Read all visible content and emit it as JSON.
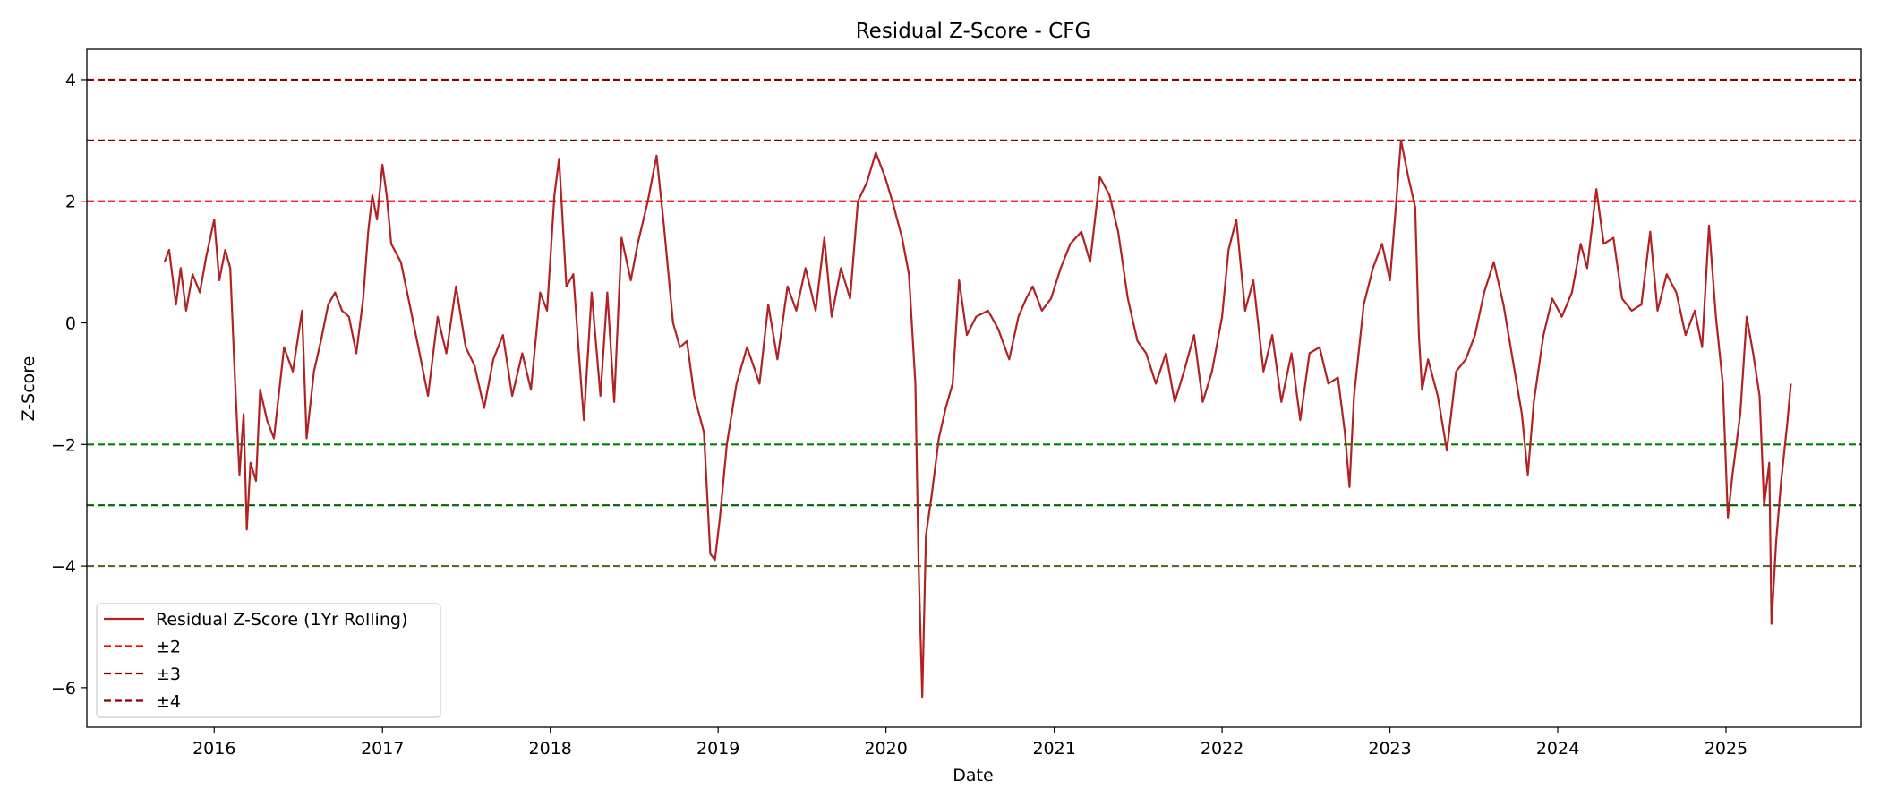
{
  "chart_data": {
    "type": "line",
    "title": "Residual Z-Score - CFG",
    "xlabel": "Date",
    "ylabel": "Z-Score",
    "xlim": [
      "2015-03-30",
      "2025-10-22"
    ],
    "ylim": [
      -6.65,
      4.5
    ],
    "x_ticks": [
      "2016-01-01",
      "2017-01-01",
      "2018-01-01",
      "2019-01-01",
      "2020-01-01",
      "2021-01-01",
      "2022-01-01",
      "2023-01-01",
      "2024-01-01",
      "2025-01-01"
    ],
    "x_tick_labels": [
      "2016",
      "2017",
      "2018",
      "2019",
      "2020",
      "2021",
      "2022",
      "2023",
      "2024",
      "2025"
    ],
    "y_ticks": [
      -6,
      -4,
      -2,
      0,
      2,
      4
    ],
    "y_tick_labels": [
      "−6",
      "−4",
      "−2",
      "0",
      "2",
      "4"
    ],
    "grid": false,
    "legend_position": "lower-left",
    "series": [
      {
        "name": "Residual Z-Score (1Yr Rolling)",
        "color": "#b22222",
        "points": [
          [
            "2015-09-15",
            1.0
          ],
          [
            "2015-09-25",
            1.2
          ],
          [
            "2015-10-10",
            0.3
          ],
          [
            "2015-10-20",
            0.9
          ],
          [
            "2015-11-01",
            0.2
          ],
          [
            "2015-11-15",
            0.8
          ],
          [
            "2015-12-01",
            0.5
          ],
          [
            "2015-12-15",
            1.1
          ],
          [
            "2016-01-01",
            1.7
          ],
          [
            "2016-01-12",
            0.7
          ],
          [
            "2016-01-25",
            1.2
          ],
          [
            "2016-02-05",
            0.9
          ],
          [
            "2016-02-15",
            -0.9
          ],
          [
            "2016-02-25",
            -2.5
          ],
          [
            "2016-03-05",
            -1.5
          ],
          [
            "2016-03-12",
            -3.4
          ],
          [
            "2016-03-20",
            -2.3
          ],
          [
            "2016-04-01",
            -2.6
          ],
          [
            "2016-04-10",
            -1.1
          ],
          [
            "2016-04-25",
            -1.6
          ],
          [
            "2016-05-10",
            -1.9
          ],
          [
            "2016-06-01",
            -0.4
          ],
          [
            "2016-06-20",
            -0.8
          ],
          [
            "2016-07-10",
            0.2
          ],
          [
            "2016-07-20",
            -1.9
          ],
          [
            "2016-08-05",
            -0.8
          ],
          [
            "2016-08-20",
            -0.3
          ],
          [
            "2016-09-05",
            0.3
          ],
          [
            "2016-09-20",
            0.5
          ],
          [
            "2016-10-05",
            0.2
          ],
          [
            "2016-10-20",
            0.1
          ],
          [
            "2016-11-05",
            -0.5
          ],
          [
            "2016-11-20",
            0.4
          ],
          [
            "2016-12-01",
            1.5
          ],
          [
            "2016-12-10",
            2.1
          ],
          [
            "2016-12-20",
            1.7
          ],
          [
            "2017-01-01",
            2.6
          ],
          [
            "2017-01-10",
            2.1
          ],
          [
            "2017-01-20",
            1.3
          ],
          [
            "2017-02-10",
            1.0
          ],
          [
            "2017-03-01",
            0.3
          ],
          [
            "2017-03-20",
            -0.4
          ],
          [
            "2017-04-10",
            -1.2
          ],
          [
            "2017-05-01",
            0.1
          ],
          [
            "2017-05-20",
            -0.5
          ],
          [
            "2017-06-10",
            0.6
          ],
          [
            "2017-07-01",
            -0.4
          ],
          [
            "2017-07-20",
            -0.7
          ],
          [
            "2017-08-10",
            -1.4
          ],
          [
            "2017-08-30",
            -0.6
          ],
          [
            "2017-09-20",
            -0.2
          ],
          [
            "2017-10-10",
            -1.2
          ],
          [
            "2017-11-01",
            -0.5
          ],
          [
            "2017-11-20",
            -1.1
          ],
          [
            "2017-12-10",
            0.5
          ],
          [
            "2017-12-25",
            0.2
          ],
          [
            "2018-01-10",
            2.1
          ],
          [
            "2018-01-20",
            2.7
          ],
          [
            "2018-02-05",
            0.6
          ],
          [
            "2018-02-20",
            0.8
          ],
          [
            "2018-03-05",
            -0.6
          ],
          [
            "2018-03-15",
            -1.6
          ],
          [
            "2018-04-01",
            0.5
          ],
          [
            "2018-04-20",
            -1.2
          ],
          [
            "2018-05-05",
            0.5
          ],
          [
            "2018-05-20",
            -1.3
          ],
          [
            "2018-06-05",
            1.4
          ],
          [
            "2018-06-25",
            0.7
          ],
          [
            "2018-07-10",
            1.3
          ],
          [
            "2018-08-01",
            2.0
          ],
          [
            "2018-08-20",
            2.75
          ],
          [
            "2018-09-05",
            1.6
          ],
          [
            "2018-09-25",
            0.0
          ],
          [
            "2018-10-10",
            -0.4
          ],
          [
            "2018-10-25",
            -0.3
          ],
          [
            "2018-11-10",
            -1.2
          ],
          [
            "2018-12-01",
            -1.8
          ],
          [
            "2018-12-15",
            -3.8
          ],
          [
            "2018-12-25",
            -3.9
          ],
          [
            "2019-01-05",
            -3.2
          ],
          [
            "2019-01-20",
            -2.0
          ],
          [
            "2019-02-10",
            -1.0
          ],
          [
            "2019-03-05",
            -0.4
          ],
          [
            "2019-04-01",
            -1.0
          ],
          [
            "2019-04-20",
            0.3
          ],
          [
            "2019-05-10",
            -0.6
          ],
          [
            "2019-06-01",
            0.6
          ],
          [
            "2019-06-20",
            0.2
          ],
          [
            "2019-07-10",
            0.9
          ],
          [
            "2019-08-01",
            0.2
          ],
          [
            "2019-08-20",
            1.4
          ],
          [
            "2019-09-05",
            0.1
          ],
          [
            "2019-09-25",
            0.9
          ],
          [
            "2019-10-15",
            0.4
          ],
          [
            "2019-11-01",
            2.0
          ],
          [
            "2019-11-20",
            2.3
          ],
          [
            "2019-12-10",
            2.8
          ],
          [
            "2019-12-30",
            2.4
          ],
          [
            "2020-01-15",
            2.0
          ],
          [
            "2020-02-05",
            1.4
          ],
          [
            "2020-02-20",
            0.8
          ],
          [
            "2020-03-05",
            -1.0
          ],
          [
            "2020-03-12",
            -4.0
          ],
          [
            "2020-03-20",
            -6.15
          ],
          [
            "2020-03-28",
            -3.5
          ],
          [
            "2020-04-10",
            -2.8
          ],
          [
            "2020-04-25",
            -1.9
          ],
          [
            "2020-05-10",
            -1.4
          ],
          [
            "2020-05-25",
            -1.0
          ],
          [
            "2020-06-08",
            0.7
          ],
          [
            "2020-06-25",
            -0.2
          ],
          [
            "2020-07-15",
            0.1
          ],
          [
            "2020-08-10",
            0.2
          ],
          [
            "2020-09-01",
            -0.1
          ],
          [
            "2020-09-25",
            -0.6
          ],
          [
            "2020-10-15",
            0.1
          ],
          [
            "2020-11-01",
            0.4
          ],
          [
            "2020-11-15",
            0.6
          ],
          [
            "2020-12-05",
            0.2
          ],
          [
            "2020-12-25",
            0.4
          ],
          [
            "2021-01-15",
            0.9
          ],
          [
            "2021-02-05",
            1.3
          ],
          [
            "2021-03-01",
            1.5
          ],
          [
            "2021-03-20",
            1.0
          ],
          [
            "2021-04-10",
            2.4
          ],
          [
            "2021-05-01",
            2.1
          ],
          [
            "2021-05-20",
            1.5
          ],
          [
            "2021-06-10",
            0.4
          ],
          [
            "2021-07-01",
            -0.3
          ],
          [
            "2021-07-20",
            -0.5
          ],
          [
            "2021-08-10",
            -1.0
          ],
          [
            "2021-09-01",
            -0.5
          ],
          [
            "2021-09-20",
            -1.3
          ],
          [
            "2021-10-10",
            -0.8
          ],
          [
            "2021-11-01",
            -0.2
          ],
          [
            "2021-11-20",
            -1.3
          ],
          [
            "2021-12-10",
            -0.8
          ],
          [
            "2022-01-01",
            0.1
          ],
          [
            "2022-01-15",
            1.2
          ],
          [
            "2022-02-01",
            1.7
          ],
          [
            "2022-02-20",
            0.2
          ],
          [
            "2022-03-10",
            0.7
          ],
          [
            "2022-04-01",
            -0.8
          ],
          [
            "2022-04-20",
            -0.2
          ],
          [
            "2022-05-10",
            -1.3
          ],
          [
            "2022-06-01",
            -0.5
          ],
          [
            "2022-06-20",
            -1.6
          ],
          [
            "2022-07-10",
            -0.5
          ],
          [
            "2022-08-01",
            -0.4
          ],
          [
            "2022-08-20",
            -1.0
          ],
          [
            "2022-09-10",
            -0.9
          ],
          [
            "2022-09-25",
            -1.8
          ],
          [
            "2022-10-05",
            -2.7
          ],
          [
            "2022-10-15",
            -1.2
          ],
          [
            "2022-11-05",
            0.3
          ],
          [
            "2022-11-25",
            0.9
          ],
          [
            "2022-12-15",
            1.3
          ],
          [
            "2023-01-01",
            0.7
          ],
          [
            "2023-01-15",
            2.0
          ],
          [
            "2023-01-25",
            3.0
          ],
          [
            "2023-02-10",
            2.4
          ],
          [
            "2023-02-25",
            1.9
          ],
          [
            "2023-03-05",
            -0.2
          ],
          [
            "2023-03-12",
            -1.1
          ],
          [
            "2023-03-25",
            -0.6
          ],
          [
            "2023-04-15",
            -1.2
          ],
          [
            "2023-05-05",
            -2.1
          ],
          [
            "2023-05-25",
            -0.8
          ],
          [
            "2023-06-15",
            -0.6
          ],
          [
            "2023-07-05",
            -0.2
          ],
          [
            "2023-07-25",
            0.5
          ],
          [
            "2023-08-15",
            1.0
          ],
          [
            "2023-09-05",
            0.3
          ],
          [
            "2023-09-25",
            -0.6
          ],
          [
            "2023-10-15",
            -1.5
          ],
          [
            "2023-10-28",
            -2.5
          ],
          [
            "2023-11-10",
            -1.3
          ],
          [
            "2023-12-01",
            -0.2
          ],
          [
            "2023-12-20",
            0.4
          ],
          [
            "2024-01-10",
            0.1
          ],
          [
            "2024-02-01",
            0.5
          ],
          [
            "2024-02-20",
            1.3
          ],
          [
            "2024-03-05",
            0.9
          ],
          [
            "2024-03-25",
            2.2
          ],
          [
            "2024-04-10",
            1.3
          ],
          [
            "2024-05-01",
            1.4
          ],
          [
            "2024-05-20",
            0.4
          ],
          [
            "2024-06-10",
            0.2
          ],
          [
            "2024-07-01",
            0.3
          ],
          [
            "2024-07-20",
            1.5
          ],
          [
            "2024-08-05",
            0.2
          ],
          [
            "2024-08-25",
            0.8
          ],
          [
            "2024-09-15",
            0.5
          ],
          [
            "2024-10-05",
            -0.2
          ],
          [
            "2024-10-25",
            0.2
          ],
          [
            "2024-11-10",
            -0.4
          ],
          [
            "2024-11-25",
            1.6
          ],
          [
            "2024-12-10",
            0.1
          ],
          [
            "2024-12-25",
            -1.0
          ],
          [
            "2025-01-05",
            -3.2
          ],
          [
            "2025-01-15",
            -2.5
          ],
          [
            "2025-02-01",
            -1.5
          ],
          [
            "2025-02-15",
            0.1
          ],
          [
            "2025-03-01",
            -0.5
          ],
          [
            "2025-03-15",
            -1.2
          ],
          [
            "2025-03-25",
            -3.0
          ],
          [
            "2025-04-05",
            -2.3
          ],
          [
            "2025-04-10",
            -4.95
          ],
          [
            "2025-04-20",
            -3.6
          ],
          [
            "2025-05-01",
            -2.6
          ],
          [
            "2025-05-15",
            -1.6
          ],
          [
            "2025-05-22",
            -1.0
          ]
        ]
      }
    ],
    "reference_lines": [
      {
        "y": 2,
        "color": "#ff0000",
        "legend": "±2"
      },
      {
        "y": 3,
        "color": "#8b0000",
        "legend": "±3"
      },
      {
        "y": 4,
        "color": "#8b0000",
        "legend": "±4"
      },
      {
        "y": -2,
        "color": "#008000"
      },
      {
        "y": -3,
        "color": "#006400"
      },
      {
        "y": -4,
        "color": "#556b2f"
      }
    ],
    "legend": [
      {
        "label": "Residual Z-Score (1Yr Rolling)",
        "color": "#b22222",
        "style": "solid"
      },
      {
        "label": "±2",
        "color": "#ff0000",
        "style": "dashed"
      },
      {
        "label": "±3",
        "color": "#8b0000",
        "style": "dashed"
      },
      {
        "label": "±4",
        "color": "#8b0000",
        "style": "dashed"
      }
    ]
  }
}
